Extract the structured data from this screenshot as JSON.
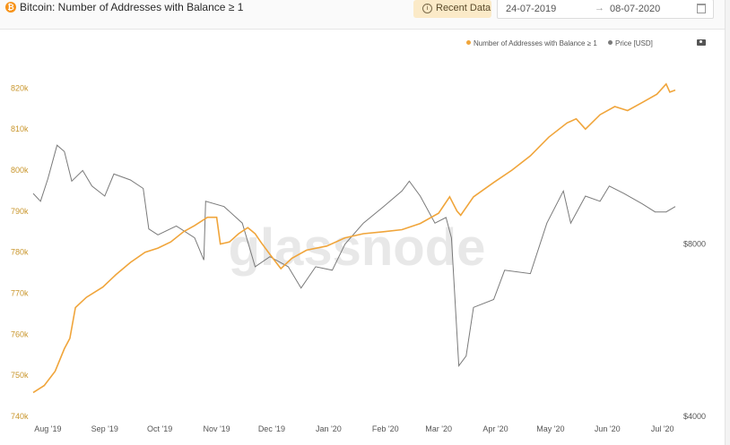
{
  "header": {
    "coin_symbol": "₿",
    "title": "Bitcoin: Number of Addresses with Balance ≥ 1",
    "recent_button": "Recent Data",
    "date_from": "24-07-2019",
    "date_arrow": "→",
    "date_to": "08-07-2020"
  },
  "watermark": "glassnode",
  "colors": {
    "addresses": "#f0a53b",
    "price": "#7a7a7a"
  },
  "chart_data": {
    "type": "line",
    "title": "Bitcoin: Number of Addresses with Balance ≥ 1",
    "legend_position": "top-right",
    "grid": false,
    "x_ticks": [
      "Aug '19",
      "Sep '19",
      "Oct '19",
      "Nov '19",
      "Dec '19",
      "Jan '20",
      "Feb '20",
      "Mar '20",
      "Apr '20",
      "May '20",
      "Jun '20",
      "Jul '20"
    ],
    "y_left_ticks": [
      "740k",
      "750k",
      "760k",
      "770k",
      "780k",
      "790k",
      "800k",
      "810k",
      "820k"
    ],
    "y_left_range": [
      740000,
      824000
    ],
    "y_right_ticks": [
      "$4000",
      "$8000"
    ],
    "y_right_scale": "log",
    "y_right_range": [
      4000,
      16000
    ],
    "x_range": [
      "2019-07-24",
      "2020-07-08"
    ],
    "series": [
      {
        "name": "Number of Addresses with Balance ≥ 1",
        "axis": "left",
        "points": [
          [
            "2019-07-24",
            745800
          ],
          [
            "2019-07-30",
            747500
          ],
          [
            "2019-08-05",
            751000
          ],
          [
            "2019-08-10",
            756500
          ],
          [
            "2019-08-13",
            759000
          ],
          [
            "2019-08-16",
            766500
          ],
          [
            "2019-08-22",
            769000
          ],
          [
            "2019-08-31",
            771500
          ],
          [
            "2019-09-07",
            774500
          ],
          [
            "2019-09-15",
            777500
          ],
          [
            "2019-09-23",
            780000
          ],
          [
            "2019-09-30",
            781000
          ],
          [
            "2019-10-07",
            782500
          ],
          [
            "2019-10-14",
            785000
          ],
          [
            "2019-10-20",
            786500
          ],
          [
            "2019-10-27",
            788500
          ],
          [
            "2019-11-01",
            788500
          ],
          [
            "2019-11-03",
            782000
          ],
          [
            "2019-11-08",
            782500
          ],
          [
            "2019-11-13",
            784500
          ],
          [
            "2019-11-18",
            786000
          ],
          [
            "2019-11-22",
            784500
          ],
          [
            "2019-11-25",
            782500
          ],
          [
            "2019-11-30",
            779500
          ],
          [
            "2019-12-06",
            776000
          ],
          [
            "2019-12-12",
            778500
          ],
          [
            "2019-12-20",
            780500
          ],
          [
            "2019-12-31",
            781500
          ],
          [
            "2020-01-10",
            783500
          ],
          [
            "2020-01-20",
            784500
          ],
          [
            "2020-01-31",
            785000
          ],
          [
            "2020-02-10",
            785500
          ],
          [
            "2020-02-20",
            787000
          ],
          [
            "2020-03-01",
            789500
          ],
          [
            "2020-03-07",
            793500
          ],
          [
            "2020-03-11",
            790000
          ],
          [
            "2020-03-13",
            789000
          ],
          [
            "2020-03-20",
            793500
          ],
          [
            "2020-03-31",
            797000
          ],
          [
            "2020-04-10",
            800000
          ],
          [
            "2020-04-20",
            803500
          ],
          [
            "2020-04-30",
            808000
          ],
          [
            "2020-05-10",
            811500
          ],
          [
            "2020-05-15",
            812500
          ],
          [
            "2020-05-20",
            810000
          ],
          [
            "2020-05-28",
            813500
          ],
          [
            "2020-06-05",
            815500
          ],
          [
            "2020-06-12",
            814500
          ],
          [
            "2020-06-20",
            816500
          ],
          [
            "2020-06-28",
            818500
          ],
          [
            "2020-07-03",
            821000
          ],
          [
            "2020-07-05",
            819000
          ],
          [
            "2020-07-08",
            819500
          ]
        ]
      },
      {
        "name": "Price [USD]",
        "axis": "right",
        "points": [
          [
            "2019-07-24",
            9800
          ],
          [
            "2019-07-28",
            9500
          ],
          [
            "2019-08-01",
            10400
          ],
          [
            "2019-08-06",
            11900
          ],
          [
            "2019-08-10",
            11600
          ],
          [
            "2019-08-14",
            10300
          ],
          [
            "2019-08-20",
            10750
          ],
          [
            "2019-08-25",
            10100
          ],
          [
            "2019-09-01",
            9700
          ],
          [
            "2019-09-06",
            10600
          ],
          [
            "2019-09-15",
            10350
          ],
          [
            "2019-09-22",
            10000
          ],
          [
            "2019-09-25",
            8500
          ],
          [
            "2019-09-30",
            8300
          ],
          [
            "2019-10-10",
            8600
          ],
          [
            "2019-10-20",
            8200
          ],
          [
            "2019-10-25",
            7500
          ],
          [
            "2019-10-26",
            9500
          ],
          [
            "2019-11-05",
            9300
          ],
          [
            "2019-11-15",
            8700
          ],
          [
            "2019-11-22",
            7300
          ],
          [
            "2019-11-30",
            7600
          ],
          [
            "2019-12-10",
            7300
          ],
          [
            "2019-12-17",
            6700
          ],
          [
            "2019-12-25",
            7300
          ],
          [
            "2020-01-03",
            7200
          ],
          [
            "2020-01-10",
            8000
          ],
          [
            "2020-01-20",
            8700
          ],
          [
            "2020-01-31",
            9300
          ],
          [
            "2020-02-10",
            9900
          ],
          [
            "2020-02-14",
            10300
          ],
          [
            "2020-02-20",
            9700
          ],
          [
            "2020-02-28",
            8700
          ],
          [
            "2020-03-05",
            8900
          ],
          [
            "2020-03-08",
            8200
          ],
          [
            "2020-03-12",
            4900
          ],
          [
            "2020-03-16",
            5100
          ],
          [
            "2020-03-20",
            6200
          ],
          [
            "2020-03-31",
            6400
          ],
          [
            "2020-04-06",
            7200
          ],
          [
            "2020-04-20",
            7100
          ],
          [
            "2020-04-29",
            8700
          ],
          [
            "2020-05-08",
            9900
          ],
          [
            "2020-05-12",
            8700
          ],
          [
            "2020-05-20",
            9700
          ],
          [
            "2020-05-28",
            9500
          ],
          [
            "2020-06-02",
            10100
          ],
          [
            "2020-06-10",
            9800
          ],
          [
            "2020-06-20",
            9400
          ],
          [
            "2020-06-27",
            9100
          ],
          [
            "2020-07-03",
            9100
          ],
          [
            "2020-07-08",
            9300
          ]
        ]
      }
    ]
  }
}
